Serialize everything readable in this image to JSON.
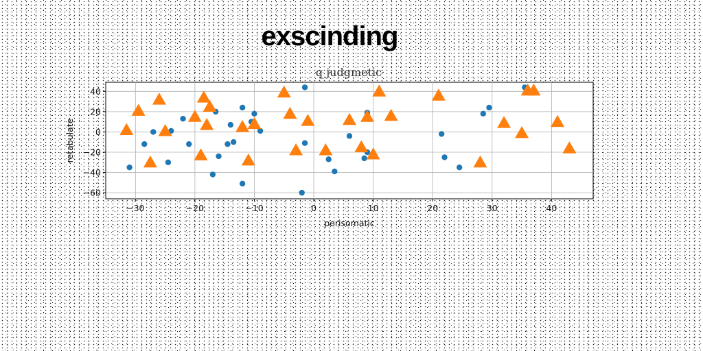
{
  "chart_data": {
    "type": "scatter",
    "suptitle": "exscinding",
    "title": "q judgmetic",
    "xlabel": "perisomatic",
    "ylabel": "retabulate",
    "xlim": [
      -35,
      47
    ],
    "ylim": [
      -66,
      49
    ],
    "xticks": [
      -30,
      -20,
      -10,
      0,
      10,
      20,
      30,
      40
    ],
    "yticks": [
      -60,
      -40,
      -20,
      0,
      20,
      40
    ],
    "grid": true,
    "series": [
      {
        "marker": "circle",
        "color": "#1f77b4",
        "x": [
          -31,
          -28.5,
          -27,
          -24.5,
          -24,
          -22,
          -21,
          -17,
          -16.5,
          -16,
          -14.5,
          -14,
          -13.5,
          -12,
          -12,
          -10.5,
          -10,
          -9,
          -2,
          -1.5,
          -1.5,
          2.5,
          3.5,
          6,
          8.5,
          9,
          9,
          21.5,
          22,
          24.5,
          28.5,
          29.5,
          35.5
        ],
        "y": [
          -35,
          -12,
          0,
          -30,
          1,
          13,
          -12,
          -42,
          20,
          -24,
          -12,
          7,
          -10,
          24,
          -51,
          10,
          18,
          1,
          -60,
          44,
          -11,
          -27,
          -39,
          -4,
          -26,
          -20,
          19,
          -2,
          -25,
          -35,
          18,
          24,
          44
        ]
      },
      {
        "marker": "triangle",
        "color": "#ff7f0e",
        "x": [
          -31.5,
          -29.5,
          -27.5,
          -26,
          -25,
          -20,
          -19,
          -18.5,
          -18,
          -17.5,
          -12,
          -11,
          -10,
          -5,
          -4,
          -3,
          -1,
          2,
          6,
          8,
          9,
          10,
          11,
          13,
          21,
          28,
          32,
          35,
          36,
          37,
          41,
          43
        ],
        "y": [
          2,
          21,
          -30,
          32,
          1,
          15,
          -23,
          34,
          7,
          25,
          5,
          -28,
          8,
          39,
          18,
          -18,
          11,
          -18,
          12,
          -15,
          15,
          -22,
          40,
          16,
          36,
          -30,
          9,
          -1,
          41,
          41,
          10,
          -16
        ]
      }
    ]
  }
}
